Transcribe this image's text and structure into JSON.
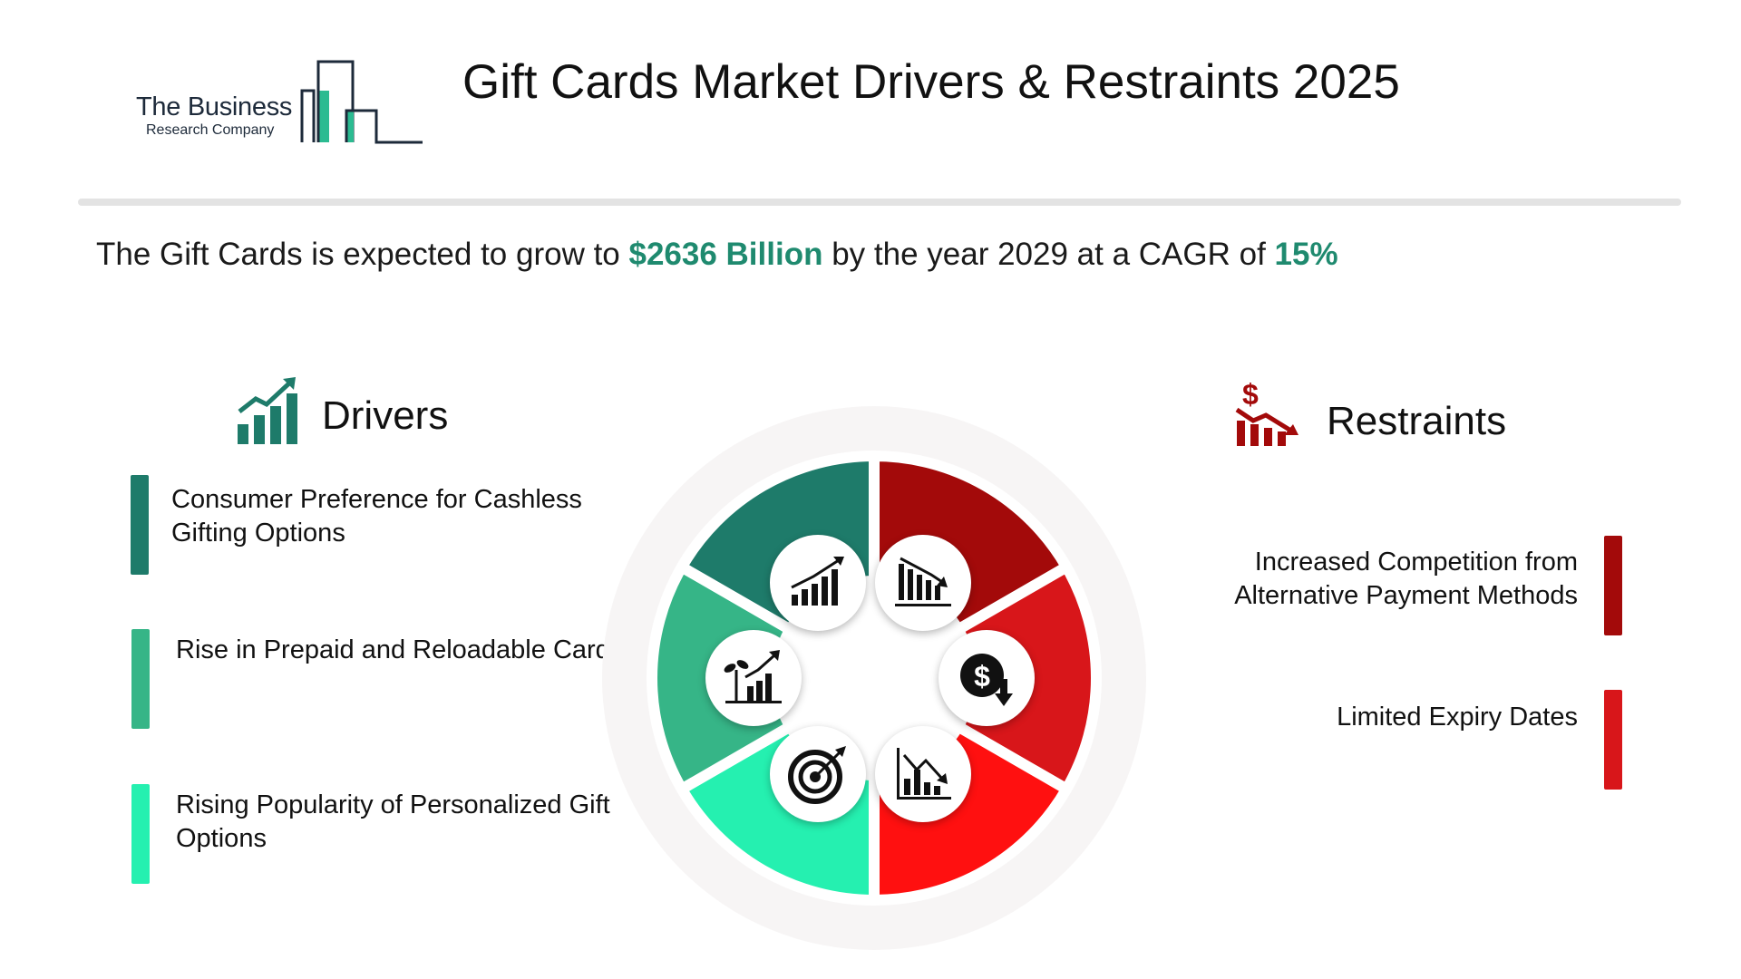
{
  "logo": {
    "line1": "The Business",
    "line2": "Research Company"
  },
  "title": "Gift Cards Market Drivers & Restraints 2025",
  "summary": {
    "prefix": "The Gift Cards is expected to grow to ",
    "value": "$2636 Billion",
    "middle": " by the year 2029 at a CAGR of ",
    "cagr": "15%"
  },
  "drivers": {
    "title": "Drivers",
    "items": [
      {
        "label": "Consumer Preference for Cashless Gifting Options",
        "color": "#1e7b6a"
      },
      {
        "label": "Rise in Prepaid and Reloadable Cards",
        "color": "#36b587"
      },
      {
        "label": "Rising Popularity of Personalized Gift Options",
        "color": "#25f0b0"
      }
    ]
  },
  "restraints": {
    "title": "Restraints",
    "items": [
      {
        "label": "Increased Competition from Alternative Payment Methods",
        "color": "#a30a0a"
      },
      {
        "label": "Limited Expiry Dates",
        "color": "#d8161a"
      }
    ]
  },
  "wheel": {
    "segment_colors": [
      "#a30a0a",
      "#d8161a",
      "#ff1010",
      "#25f0b0",
      "#36b587",
      "#1e7b6a"
    ],
    "icons": [
      "growth-chart-icon",
      "declining-bar-chart-icon",
      "dollar-down-icon",
      "declining-line-chart-icon",
      "target-icon",
      "plant-growth-chart-icon"
    ]
  }
}
